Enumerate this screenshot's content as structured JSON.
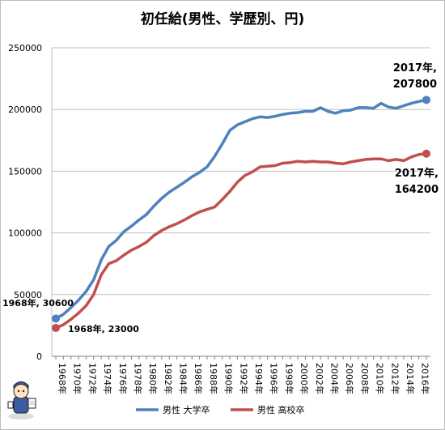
{
  "chart_data": {
    "type": "line",
    "title": "初任給(男性、学歴別、円)",
    "xlabel": "",
    "ylabel": "",
    "ylim": [
      0,
      250000
    ],
    "yticks": [
      0,
      50000,
      100000,
      150000,
      200000,
      250000
    ],
    "grid": true,
    "legend_position": "bottom",
    "x": [
      1968,
      1969,
      1970,
      1971,
      1972,
      1973,
      1974,
      1975,
      1976,
      1977,
      1978,
      1979,
      1980,
      1981,
      1982,
      1983,
      1984,
      1985,
      1986,
      1987,
      1988,
      1989,
      1990,
      1991,
      1992,
      1993,
      1994,
      1995,
      1996,
      1997,
      1998,
      1999,
      2000,
      2001,
      2002,
      2003,
      2004,
      2005,
      2006,
      2007,
      2008,
      2009,
      2010,
      2011,
      2012,
      2013,
      2014,
      2015,
      2016,
      2017
    ],
    "xticklabels": [
      "1968年",
      "1970年",
      "1972年",
      "1974年",
      "1976年",
      "1978年",
      "1980年",
      "1982年",
      "1984年",
      "1986年",
      "1988年",
      "1990年",
      "1992年",
      "1994年",
      "1996年",
      "1998年",
      "2000年",
      "2002年",
      "2004年",
      "2006年",
      "2008年",
      "2010年",
      "2012年",
      "2014年",
      "2016年"
    ],
    "series": [
      {
        "name": "男性 大学卒",
        "color": "#4f81bd",
        "values": [
          30600,
          34000,
          39500,
          45500,
          52500,
          62000,
          78000,
          89000,
          94000,
          101000,
          105500,
          110500,
          115000,
          122000,
          128000,
          133000,
          137000,
          141000,
          145500,
          149000,
          153500,
          162000,
          172000,
          183000,
          187500,
          190000,
          192500,
          194000,
          193500,
          194500,
          196000,
          197000,
          197500,
          198500,
          198500,
          201500,
          198500,
          197000,
          199000,
          199500,
          201500,
          201500,
          201000,
          205000,
          202000,
          201000,
          203000,
          205000,
          206500,
          207800
        ]
      },
      {
        "name": "男性 高校卒",
        "color": "#c0504d",
        "values": [
          23000,
          25500,
          30000,
          35000,
          41000,
          50000,
          66000,
          75000,
          77500,
          82000,
          86000,
          89000,
          92500,
          98000,
          102000,
          105000,
          107500,
          110500,
          114000,
          117000,
          119000,
          121000,
          127000,
          133500,
          141000,
          146500,
          149500,
          153500,
          154000,
          154500,
          156500,
          157000,
          158000,
          157500,
          158000,
          157500,
          157500,
          156500,
          156000,
          157500,
          158500,
          159500,
          160000,
          160000,
          158500,
          159500,
          158500,
          161500,
          163500,
          164200
        ]
      }
    ],
    "annotations": {
      "univ_first": "1968年, 30600",
      "high_first": "1968年, 23000",
      "univ_last_line1": "2017年,",
      "univ_last_line2": "207800",
      "high_last_line1": "2017年,",
      "high_last_line2": "164200"
    }
  }
}
